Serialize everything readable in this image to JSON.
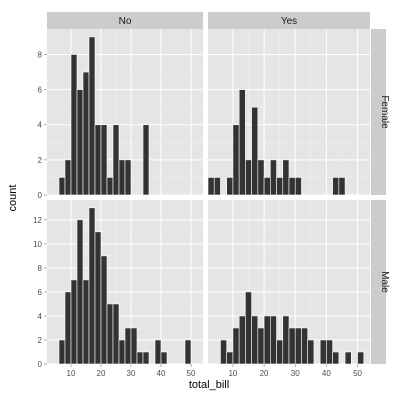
{
  "chart_data": {
    "type": "bar",
    "xlabel": "total_bill",
    "ylabel": "count",
    "col_facet_values": [
      "No",
      "Yes"
    ],
    "row_facet_values": [
      "Female",
      "Male"
    ],
    "binwidth": 2,
    "x_ticks": [
      10,
      20,
      30,
      40,
      50
    ],
    "xlim": [
      2,
      54
    ],
    "panels": [
      {
        "row": "Female",
        "col": "No",
        "ylim": [
          0,
          9.45
        ],
        "y_ticks": [
          0,
          2,
          4,
          6,
          8
        ],
        "bins": [
          {
            "x": 7,
            "count": 1
          },
          {
            "x": 9,
            "count": 2
          },
          {
            "x": 11,
            "count": 8
          },
          {
            "x": 13,
            "count": 6
          },
          {
            "x": 15,
            "count": 7
          },
          {
            "x": 17,
            "count": 9
          },
          {
            "x": 19,
            "count": 4
          },
          {
            "x": 21,
            "count": 4
          },
          {
            "x": 23,
            "count": 1
          },
          {
            "x": 25,
            "count": 4
          },
          {
            "x": 27,
            "count": 2
          },
          {
            "x": 29,
            "count": 2
          },
          {
            "x": 35,
            "count": 4
          }
        ]
      },
      {
        "row": "Female",
        "col": "Yes",
        "ylim": [
          0,
          9.45
        ],
        "y_ticks": [
          0,
          2,
          4,
          6,
          8
        ],
        "bins": [
          {
            "x": 3,
            "count": 1
          },
          {
            "x": 5,
            "count": 1
          },
          {
            "x": 9,
            "count": 1
          },
          {
            "x": 11,
            "count": 4
          },
          {
            "x": 13,
            "count": 6
          },
          {
            "x": 15,
            "count": 2
          },
          {
            "x": 17,
            "count": 5
          },
          {
            "x": 19,
            "count": 2
          },
          {
            "x": 21,
            "count": 1
          },
          {
            "x": 23,
            "count": 2
          },
          {
            "x": 25,
            "count": 1
          },
          {
            "x": 27,
            "count": 2
          },
          {
            "x": 29,
            "count": 1
          },
          {
            "x": 31,
            "count": 1
          },
          {
            "x": 43,
            "count": 1
          },
          {
            "x": 45,
            "count": 1
          }
        ]
      },
      {
        "row": "Male",
        "col": "No",
        "ylim": [
          0,
          13.65
        ],
        "y_ticks": [
          0,
          2,
          4,
          6,
          8,
          10,
          12
        ],
        "bins": [
          {
            "x": 7,
            "count": 2
          },
          {
            "x": 9,
            "count": 6
          },
          {
            "x": 11,
            "count": 7
          },
          {
            "x": 13,
            "count": 12
          },
          {
            "x": 15,
            "count": 7
          },
          {
            "x": 17,
            "count": 13
          },
          {
            "x": 19,
            "count": 11
          },
          {
            "x": 21,
            "count": 9
          },
          {
            "x": 23,
            "count": 5
          },
          {
            "x": 25,
            "count": 5
          },
          {
            "x": 27,
            "count": 2
          },
          {
            "x": 29,
            "count": 3
          },
          {
            "x": 31,
            "count": 3
          },
          {
            "x": 33,
            "count": 1
          },
          {
            "x": 35,
            "count": 1
          },
          {
            "x": 39,
            "count": 2
          },
          {
            "x": 41,
            "count": 1
          },
          {
            "x": 49,
            "count": 2
          }
        ]
      },
      {
        "row": "Male",
        "col": "Yes",
        "ylim": [
          0,
          13.65
        ],
        "y_ticks": [
          0,
          2,
          4,
          6,
          8,
          10,
          12
        ],
        "bins": [
          {
            "x": 7,
            "count": 2
          },
          {
            "x": 9,
            "count": 1
          },
          {
            "x": 11,
            "count": 3
          },
          {
            "x": 13,
            "count": 4
          },
          {
            "x": 15,
            "count": 6
          },
          {
            "x": 17,
            "count": 4
          },
          {
            "x": 19,
            "count": 3
          },
          {
            "x": 21,
            "count": 4
          },
          {
            "x": 23,
            "count": 4
          },
          {
            "x": 25,
            "count": 2
          },
          {
            "x": 27,
            "count": 4
          },
          {
            "x": 29,
            "count": 3
          },
          {
            "x": 31,
            "count": 3
          },
          {
            "x": 33,
            "count": 3
          },
          {
            "x": 35,
            "count": 2
          },
          {
            "x": 39,
            "count": 2
          },
          {
            "x": 41,
            "count": 2
          },
          {
            "x": 43,
            "count": 1
          },
          {
            "x": 47,
            "count": 1
          },
          {
            "x": 51,
            "count": 1
          }
        ]
      }
    ],
    "colors": {
      "panel_background": "#e5e5e5",
      "grid_major": "#ffffff",
      "grid_minor": "#f2f2f2",
      "strip_background": "#cccccc",
      "bar_fill": "#333333",
      "bar_outline": "#ffffff"
    },
    "grid": true
  }
}
